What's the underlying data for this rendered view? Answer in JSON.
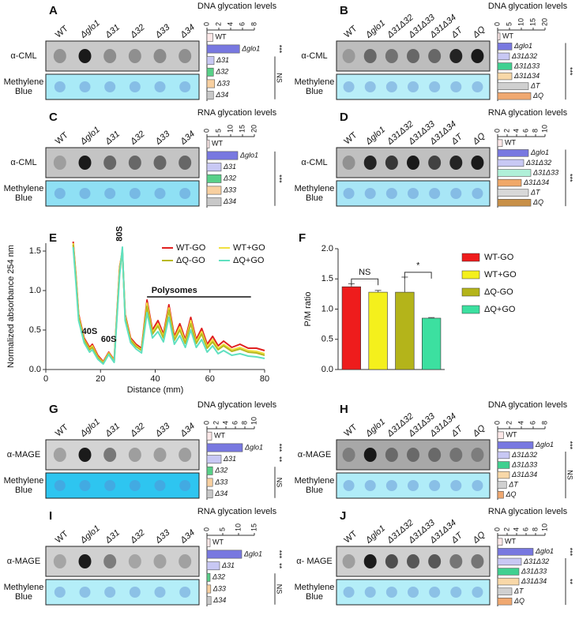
{
  "chart_data": [
    {
      "panel": "A",
      "type": "bar",
      "orientation": "horizontal",
      "lanes": [
        "WT",
        "Δglo1",
        "Δ31",
        "Δ32",
        "Δ33",
        "Δ34"
      ],
      "blots": [
        {
          "label": [
            "α-CML"
          ],
          "color": "#c9c9c9"
        },
        {
          "label": [
            "Methylene",
            "Blue"
          ],
          "color": "#a9eaf7"
        }
      ],
      "title": "DNA glycation levels",
      "categories": [
        "WT",
        "Δglo1",
        "Δ31",
        "Δ32",
        "Δ33",
        "Δ34"
      ],
      "values": [
        1,
        5.5,
        1.2,
        1.1,
        1.3,
        1.1
      ],
      "colors": [
        "#fde8e8",
        "#7878e0",
        "#c8c8f4",
        "#58d088",
        "#f8d0a0",
        "#c8c8c8"
      ],
      "xlim": [
        0,
        8
      ],
      "xticks": [
        0,
        2,
        4,
        6,
        8
      ],
      "significance": [
        {
          "text": "***",
          "span": [
            1,
            1
          ]
        },
        {
          "text": "NS",
          "span": [
            2,
            5
          ]
        }
      ]
    },
    {
      "panel": "B",
      "type": "bar",
      "orientation": "horizontal",
      "lanes": [
        "WT",
        "Δglo1",
        "Δ31Δ32",
        "Δ31Δ33",
        "Δ31Δ34",
        "ΔT",
        "ΔQ"
      ],
      "blots": [
        {
          "label": [
            "α-CML"
          ],
          "color": "#bdbdbd"
        },
        {
          "label": [
            "Methylene",
            "Blue"
          ],
          "color": "#b8eef8"
        }
      ],
      "title": "DNA glycation levels",
      "categories": [
        "WT",
        "Δglo1",
        "Δ31Δ32",
        "Δ31Δ33",
        "Δ31Δ34",
        "ΔT",
        "ΔQ"
      ],
      "values": [
        1,
        6,
        5,
        6,
        6,
        13,
        14
      ],
      "colors": [
        "#fde8e8",
        "#7878e0",
        "#c8c8f4",
        "#40d090",
        "#f8d8a8",
        "#d0d0d0",
        "#f0a870"
      ],
      "xlim": [
        0,
        20
      ],
      "xticks": [
        0,
        5,
        10,
        15,
        20
      ],
      "significance": [
        {
          "text": "***",
          "span": [
            1,
            6
          ]
        }
      ]
    },
    {
      "panel": "C",
      "type": "bar",
      "orientation": "horizontal",
      "lanes": [
        "WT",
        "Δglo1",
        "Δ31",
        "Δ32",
        "Δ33",
        "Δ34"
      ],
      "blots": [
        {
          "label": [
            "α-CML"
          ],
          "color": "#c4c4c4"
        },
        {
          "label": [
            "Methylene",
            "Blue"
          ],
          "color": "#8fe0f4"
        }
      ],
      "title": "RNA glycation levels",
      "categories": [
        "WT",
        "Δglo1",
        "Δ31",
        "Δ32",
        "Δ33",
        "Δ34"
      ],
      "values": [
        1,
        13,
        6,
        6,
        6,
        6
      ],
      "colors": [
        "#fde8e8",
        "#7878e0",
        "#c8c8f4",
        "#58d088",
        "#f8d0a0",
        "#c8c8c8"
      ],
      "xlim": [
        0,
        20
      ],
      "xticks": [
        0,
        5,
        10,
        15,
        20
      ],
      "significance": [
        {
          "text": "***",
          "span": [
            1,
            5
          ]
        }
      ]
    },
    {
      "panel": "D",
      "type": "bar",
      "orientation": "horizontal",
      "lanes": [
        "WT",
        "Δglo1",
        "Δ31Δ32",
        "Δ31Δ33",
        "Δ31Δ34",
        "ΔT",
        "ΔQ"
      ],
      "blots": [
        {
          "label": [
            "α-CML"
          ],
          "color": "#c0c0c0"
        },
        {
          "label": [
            "Methylene",
            "Blue"
          ],
          "color": "#a8e6f6"
        }
      ],
      "title": "RNA glycation levels",
      "categories": [
        "WT",
        "Δglo1",
        "Δ31Δ32",
        "Δ31Δ33",
        "Δ31Δ34",
        "ΔT",
        "ΔQ"
      ],
      "values": [
        1,
        6.5,
        5.5,
        7,
        5,
        6.5,
        7
      ],
      "colors": [
        "#fde8e8",
        "#7878e0",
        "#c8c8f4",
        "#b0f0d8",
        "#f0a868",
        "#d8d8d8",
        "#c89048"
      ],
      "xlim": [
        0,
        10
      ],
      "xticks": [
        0,
        2,
        4,
        6,
        8,
        10
      ],
      "significance": [
        {
          "text": "***",
          "span": [
            1,
            6
          ]
        }
      ]
    },
    {
      "panel": "E",
      "type": "line",
      "x": [
        10,
        11,
        12,
        14,
        16,
        17,
        19,
        21,
        23,
        25,
        27,
        28,
        29,
        31,
        33,
        35,
        37,
        39,
        41,
        43,
        45,
        47,
        49,
        51,
        53,
        55,
        57,
        59,
        61,
        63,
        65,
        68,
        71,
        74,
        77,
        80
      ],
      "series": [
        {
          "name": "WT-GO",
          "color": "#e02020",
          "values": [
            1.62,
            1.2,
            0.7,
            0.4,
            0.28,
            0.32,
            0.18,
            0.1,
            0.22,
            0.12,
            1.3,
            1.5,
            0.7,
            0.4,
            0.32,
            0.27,
            0.88,
            0.5,
            0.62,
            0.45,
            0.82,
            0.42,
            0.58,
            0.38,
            0.66,
            0.38,
            0.52,
            0.32,
            0.42,
            0.3,
            0.36,
            0.28,
            0.32,
            0.27,
            0.27,
            0.24
          ]
        },
        {
          "name": "WT+GO",
          "color": "#f0e040",
          "values": [
            1.6,
            1.18,
            0.68,
            0.38,
            0.26,
            0.3,
            0.16,
            0.09,
            0.21,
            0.11,
            1.28,
            1.52,
            0.68,
            0.38,
            0.3,
            0.25,
            0.84,
            0.47,
            0.58,
            0.42,
            0.78,
            0.39,
            0.54,
            0.35,
            0.62,
            0.35,
            0.48,
            0.29,
            0.38,
            0.27,
            0.32,
            0.25,
            0.28,
            0.24,
            0.23,
            0.2
          ]
        },
        {
          "name": "ΔQ-GO",
          "color": "#b8b820",
          "values": [
            1.58,
            1.15,
            0.66,
            0.37,
            0.25,
            0.28,
            0.15,
            0.08,
            0.2,
            0.1,
            1.25,
            1.5,
            0.66,
            0.37,
            0.29,
            0.24,
            0.8,
            0.45,
            0.55,
            0.4,
            0.75,
            0.37,
            0.5,
            0.33,
            0.58,
            0.33,
            0.45,
            0.27,
            0.35,
            0.25,
            0.3,
            0.23,
            0.26,
            0.22,
            0.21,
            0.18
          ]
        },
        {
          "name": "ΔQ+GO",
          "color": "#60e0c0",
          "values": [
            1.55,
            1.1,
            0.62,
            0.34,
            0.22,
            0.25,
            0.13,
            0.07,
            0.19,
            0.09,
            1.2,
            1.55,
            0.62,
            0.34,
            0.26,
            0.21,
            0.72,
            0.4,
            0.48,
            0.35,
            0.66,
            0.32,
            0.43,
            0.28,
            0.5,
            0.28,
            0.38,
            0.22,
            0.3,
            0.2,
            0.24,
            0.18,
            0.2,
            0.17,
            0.16,
            0.14
          ]
        }
      ],
      "xlim": [
        0,
        80
      ],
      "xticks": [
        0,
        20,
        40,
        60,
        80
      ],
      "ylim": [
        0,
        1.6
      ],
      "yticks": [
        {
          "value": 0,
          "label": "0.0"
        },
        0.5,
        {
          "value": 1,
          "label": "1.0"
        },
        1.5
      ],
      "xlabel": "Distance (mm)",
      "ylabel": "Normalized absorbance 254 nm",
      "legend": "upper right",
      "annotations": [
        "40S",
        "60S",
        "80S",
        "Polysomes"
      ]
    },
    {
      "panel": "F",
      "type": "bar",
      "categories": [
        "WT-GO",
        "WT+GO",
        "ΔQ-GO",
        "ΔQ+GO"
      ],
      "values": [
        1.37,
        1.28,
        1.28,
        0.85
      ],
      "errors": [
        0.05,
        0.03,
        0.25,
        0.01
      ],
      "colors": [
        "#ee1c1c",
        "#f4f01c",
        "#b4b41a",
        "#3ce0a0"
      ],
      "ylim": [
        0,
        2
      ],
      "yticks": [
        {
          "value": 0,
          "label": "0.0"
        },
        0.5,
        {
          "value": 1,
          "label": "1.0"
        },
        1.5,
        {
          "value": 2,
          "label": "2.0"
        }
      ],
      "ylabel": "P/M ratio",
      "legend": "right",
      "annotations": [
        {
          "text": "NS",
          "span": [
            0,
            1
          ]
        },
        {
          "text": "*",
          "span": [
            2,
            3
          ]
        }
      ]
    },
    {
      "panel": "G",
      "type": "bar",
      "orientation": "horizontal",
      "lanes": [
        "WT",
        "Δglo1",
        "Δ31",
        "Δ32",
        "Δ33",
        "Δ34"
      ],
      "blots": [
        {
          "label": [
            "α-MAGE"
          ],
          "color": "#d4d4d4"
        },
        {
          "label": [
            "Methylene",
            "Blue"
          ],
          "color": "#2ec5f0"
        }
      ],
      "title": "DNA glycation levels",
      "categories": [
        "WT",
        "Δglo1",
        "Δ31",
        "Δ32",
        "Δ33",
        "Δ34"
      ],
      "values": [
        1,
        7.5,
        3,
        1.2,
        1.2,
        1.2
      ],
      "colors": [
        "#fde8e8",
        "#7878e0",
        "#c8c8f4",
        "#58d088",
        "#f8d0a0",
        "#c8c8c8"
      ],
      "xlim": [
        0,
        10
      ],
      "xticks": [
        0,
        2,
        4,
        6,
        8,
        10
      ],
      "significance": [
        {
          "text": "***",
          "span": [
            1,
            1
          ]
        },
        {
          "text": "**",
          "span": [
            2,
            2
          ]
        },
        {
          "text": "NS",
          "span": [
            3,
            5
          ]
        }
      ]
    },
    {
      "panel": "H",
      "type": "bar",
      "orientation": "horizontal",
      "lanes": [
        "WT",
        "Δglo1",
        "Δ31Δ32",
        "Δ31Δ33",
        "Δ31Δ34",
        "ΔT",
        "ΔQ"
      ],
      "blots": [
        {
          "label": [
            "α-MAGE"
          ],
          "color": "#a8a8a8"
        },
        {
          "label": [
            "Methylene",
            "Blue"
          ],
          "color": "#b0ecf8"
        }
      ],
      "title": "DNA glycation levels",
      "categories": [
        "WT",
        "Δglo1",
        "Δ31Δ32",
        "Δ31Δ33",
        "Δ31Δ34",
        "ΔT",
        "ΔQ"
      ],
      "values": [
        1,
        6,
        2,
        2,
        2,
        1.5,
        1
      ],
      "colors": [
        "#fde8e8",
        "#7878e0",
        "#c8c8f4",
        "#40d090",
        "#f8d8a8",
        "#d0d0d0",
        "#f0a870"
      ],
      "xlim": [
        0,
        8
      ],
      "xticks": [
        0,
        2,
        4,
        6,
        8
      ],
      "significance": [
        {
          "text": "***",
          "span": [
            1,
            1
          ]
        },
        {
          "text": "NS",
          "span": [
            2,
            6
          ]
        }
      ]
    },
    {
      "panel": "I",
      "type": "bar",
      "orientation": "horizontal",
      "lanes": [
        "WT",
        "Δglo1",
        "Δ31",
        "Δ32",
        "Δ33",
        "Δ34"
      ],
      "blots": [
        {
          "label": [
            "α-MAGE"
          ],
          "color": "#d0d0d0"
        },
        {
          "label": [
            "Methylene",
            "Blue"
          ],
          "color": "#b4eef8"
        }
      ],
      "title": "RNA glycation levels",
      "categories": [
        "WT",
        "Δglo1",
        "Δ31",
        "Δ32",
        "Δ33",
        "Δ34"
      ],
      "values": [
        1,
        11,
        4,
        1,
        1.2,
        1.3
      ],
      "colors": [
        "#fde8e8",
        "#7878e0",
        "#c8c8f4",
        "#58d088",
        "#f8d0a0",
        "#c8c8c8"
      ],
      "xlim": [
        0,
        15
      ],
      "xticks": [
        0,
        5,
        10,
        15
      ],
      "significance": [
        {
          "text": "***",
          "span": [
            1,
            1
          ]
        },
        {
          "text": "**",
          "span": [
            2,
            2
          ]
        },
        {
          "text": "NS",
          "span": [
            3,
            5
          ]
        }
      ]
    },
    {
      "panel": "J",
      "type": "bar",
      "orientation": "horizontal",
      "lanes": [
        "WT",
        "Δglo1",
        "Δ31Δ32",
        "Δ31Δ33",
        "Δ31Δ34",
        "ΔT",
        "ΔQ"
      ],
      "blots": [
        {
          "label": [
            "α- MAGE"
          ],
          "color": "#cfcfcf"
        },
        {
          "label": [
            "Methylene",
            "Blue"
          ],
          "color": "#b4eef8"
        }
      ],
      "title": "RNA glycation levels",
      "categories": [
        "WT",
        "Δglo1",
        "Δ31Δ32",
        "Δ31Δ33",
        "Δ31Δ34",
        "ΔT",
        "ΔQ"
      ],
      "values": [
        1,
        7.5,
        5,
        4.5,
        4.5,
        3,
        3
      ],
      "colors": [
        "#fde8e8",
        "#7878e0",
        "#c8c8f4",
        "#40d090",
        "#f8d8a8",
        "#d0d0d0",
        "#f0a870"
      ],
      "xlim": [
        0,
        10
      ],
      "xticks": [
        0,
        2,
        4,
        6,
        8,
        10
      ],
      "significance": [
        {
          "text": "***",
          "span": [
            1,
            1
          ]
        },
        {
          "text": "**",
          "span": [
            2,
            6
          ]
        }
      ]
    }
  ]
}
